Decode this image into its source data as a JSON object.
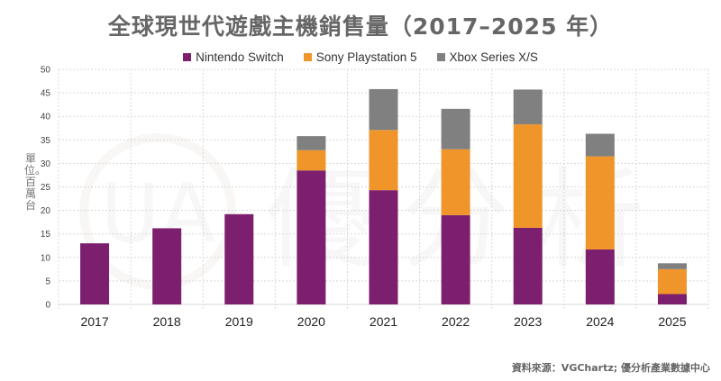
{
  "chart_data": {
    "type": "bar",
    "stacked": true,
    "title": "全球現世代遊戲主機銷售量（2017–2025 年）",
    "xlabel": "",
    "ylabel": "單位。百萬台",
    "ylim": [
      0,
      50
    ],
    "yticks": [
      0,
      5,
      10,
      15,
      20,
      25,
      30,
      35,
      40,
      45,
      50
    ],
    "grid": true,
    "legend_position": "top-center",
    "categories": [
      "2017",
      "2018",
      "2019",
      "2020",
      "2021",
      "2022",
      "2023",
      "2024",
      "2025"
    ],
    "series": [
      {
        "name": "Nintendo Switch",
        "color": "#7B1F6E",
        "values": [
          13.0,
          16.2,
          19.2,
          28.5,
          24.3,
          19.0,
          16.3,
          11.7,
          2.2
        ]
      },
      {
        "name": "Sony Playstation 5",
        "color": "#F0952A",
        "values": [
          0,
          0,
          0,
          4.3,
          12.8,
          14.0,
          22.0,
          19.8,
          5.3
        ]
      },
      {
        "name": "Xbox Series X/S",
        "color": "#808080",
        "values": [
          0,
          0,
          0,
          3.0,
          8.7,
          8.6,
          7.4,
          4.8,
          1.25
        ]
      }
    ]
  },
  "source": "資料來源：VGChartz; 優分析產業數據中心",
  "watermark": {
    "logo": "UA",
    "text": "優分析"
  }
}
